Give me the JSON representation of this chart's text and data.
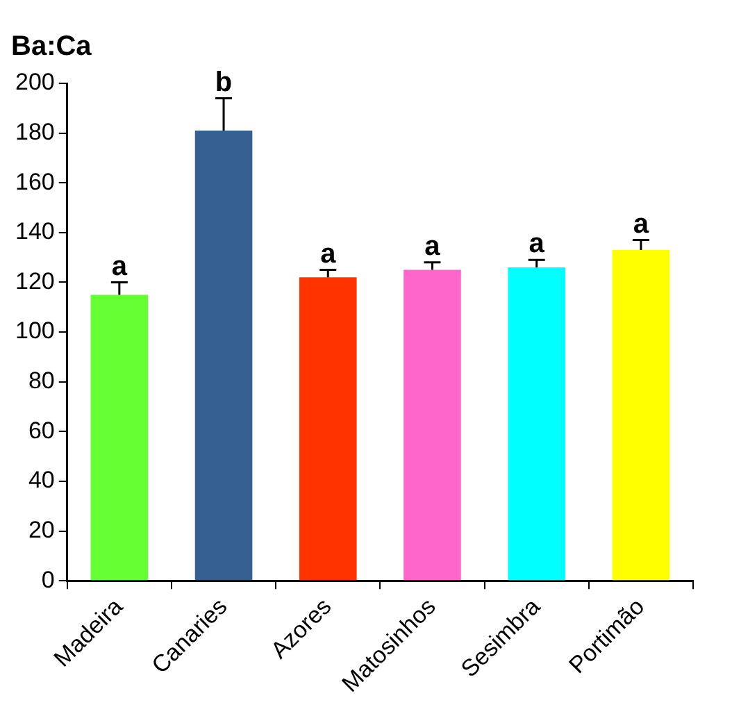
{
  "chart_data": {
    "type": "bar",
    "title": "Ba:Ca",
    "categories": [
      "Madeira",
      "Canaries",
      "Azores",
      "Matosinhos",
      "Sesimbra",
      "Portimão"
    ],
    "values": [
      115,
      181,
      122,
      125,
      126,
      133
    ],
    "colors": [
      "#66ff33",
      "#376092",
      "#ff3300",
      "#ff66cc",
      "#00ffff",
      "#ffff00"
    ],
    "errors": [
      [
        115,
        120
      ],
      [
        181,
        194
      ],
      [
        122,
        125
      ],
      [
        125,
        128
      ],
      [
        126,
        129
      ],
      [
        133,
        137
      ]
    ],
    "ylim": [
      0,
      200
    ],
    "yticks": [
      0,
      20,
      40,
      60,
      80,
      100,
      120,
      140,
      160,
      180,
      200
    ],
    "grid": false,
    "legend": false,
    "annotations": [
      {
        "text": "a",
        "x": "Madeira",
        "y": 120
      },
      {
        "text": "b",
        "x": "Canaries",
        "y": 194
      },
      {
        "text": "a",
        "x": "Azores",
        "y": 125
      },
      {
        "text": "a",
        "x": "Matosinhos",
        "y": 128
      },
      {
        "text": "a",
        "x": "Sesimbra",
        "y": 129
      },
      {
        "text": "a",
        "x": "Portimão",
        "y": 137
      }
    ]
  }
}
